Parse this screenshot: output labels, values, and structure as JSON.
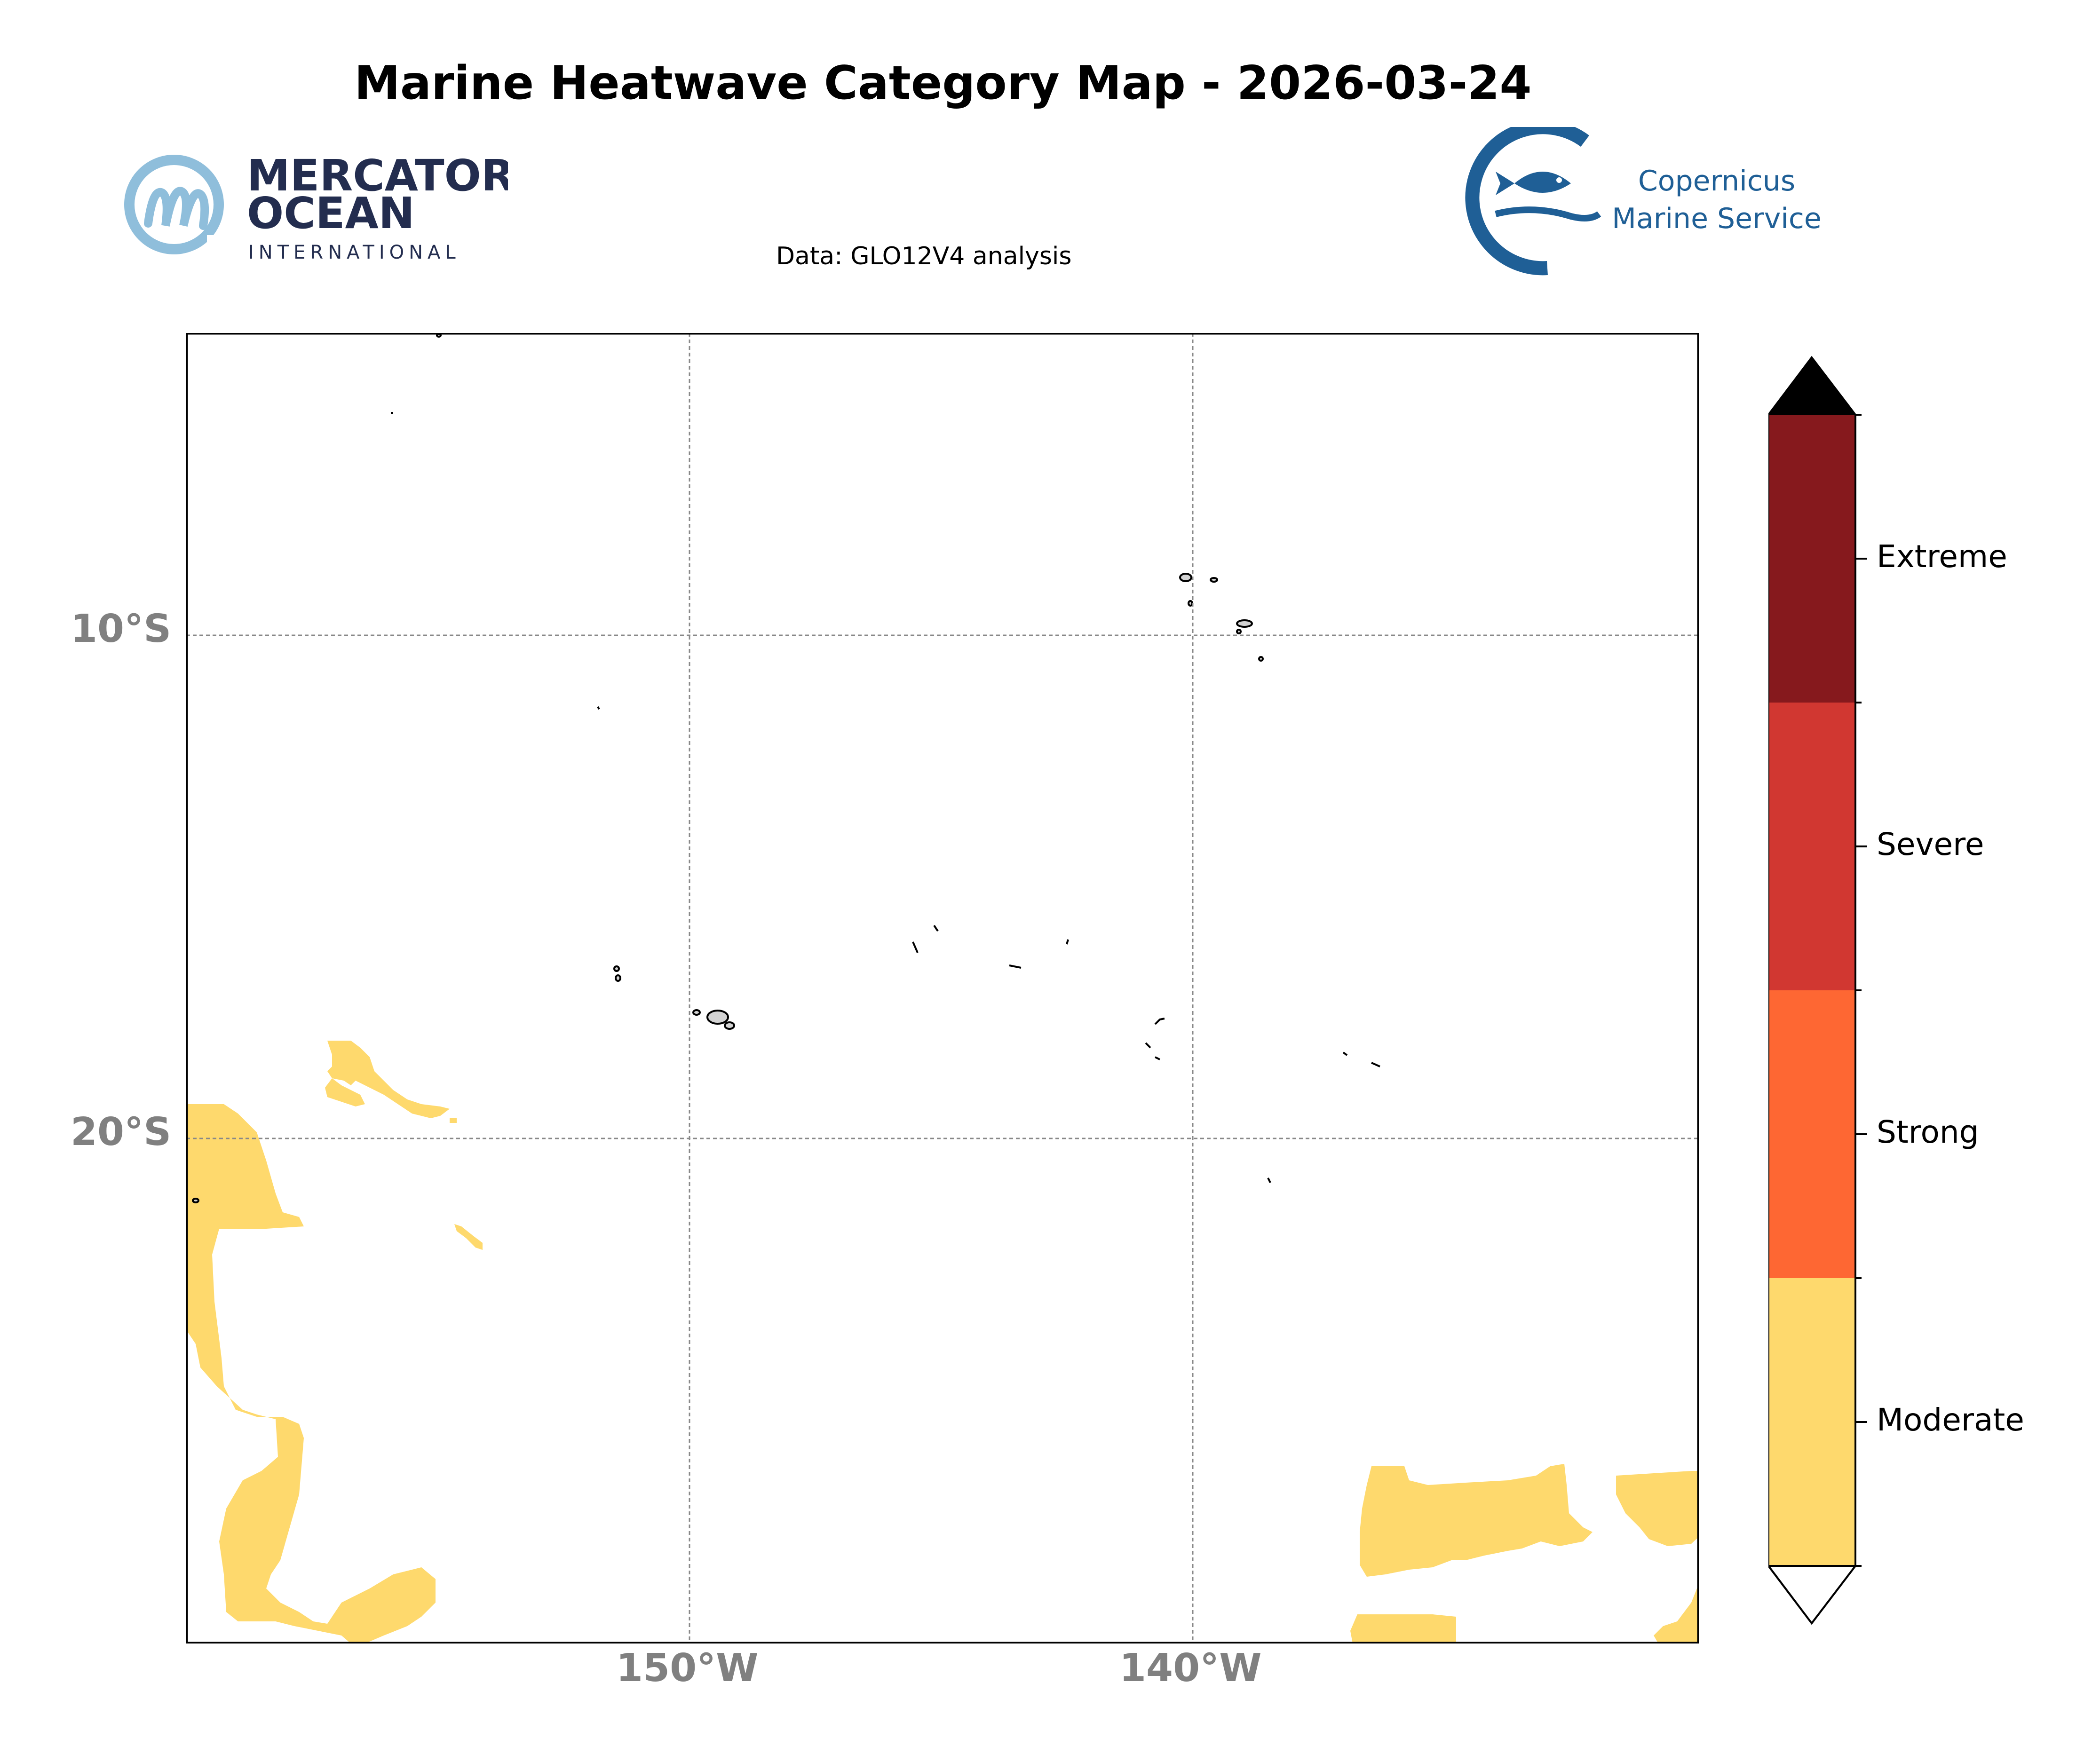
{
  "title": "Marine Heatwave Category Map - 2026-03-24",
  "subtitle": "Data: GLO12V4 analysis",
  "logos": {
    "mercator": {
      "line1": "MERCATOR",
      "line2": "OCEAN",
      "line3": "INTERNATIONAL",
      "color": "#232d4f",
      "accent": "#8fbedb"
    },
    "copernicus": {
      "line1": "Copernicus",
      "line2": "Marine Service",
      "color": "#1f5f96"
    }
  },
  "map": {
    "lat_labels": [
      "10°S",
      "20°S"
    ],
    "lon_labels": [
      "150°W",
      "140°W"
    ],
    "gridlines": true,
    "ocean_color": "#ffffff",
    "land_color": "#d3d3d3",
    "moderate_color": "#fed96d"
  },
  "colorbar": {
    "categories": [
      {
        "label": "Moderate",
        "color": "#fed96d"
      },
      {
        "label": "Strong",
        "color": "#fe6733"
      },
      {
        "label": "Severe",
        "color": "#d13731"
      },
      {
        "label": "Extreme",
        "color": "#86191d"
      }
    ],
    "over_color": "#000000",
    "under_color": "#ffffff"
  }
}
